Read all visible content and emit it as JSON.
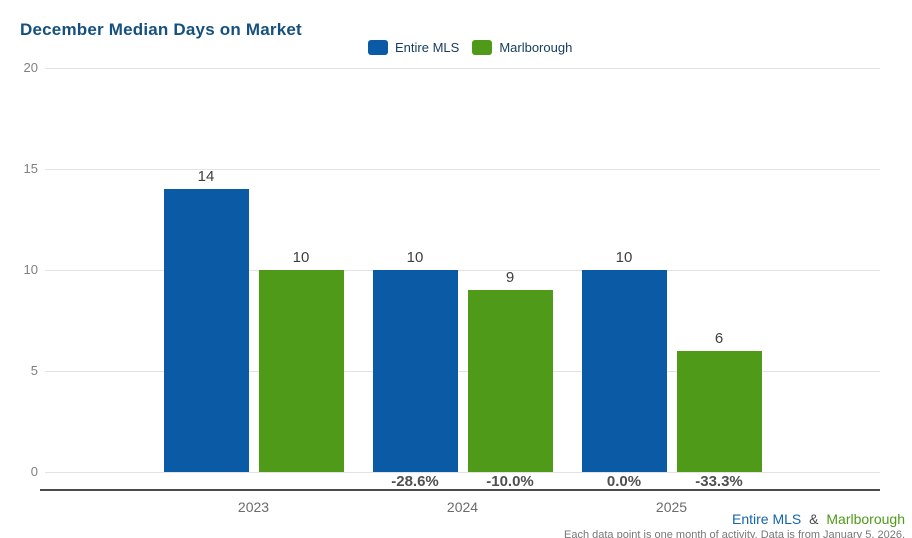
{
  "header": {
    "title": "December Median Days on Market",
    "title_color": "#15517e"
  },
  "legend": [
    {
      "label": "Entire MLS",
      "color": "#0b5aa5"
    },
    {
      "label": "Marlborough",
      "color": "#4f9a18"
    }
  ],
  "footer": {
    "series": [
      {
        "label": "Entire MLS",
        "color": "#1565ad"
      },
      {
        "label": "&",
        "color": "#4a4a4a"
      },
      {
        "label": "Marlborough",
        "color": "#4f9a18"
      }
    ],
    "note": "Each data point is one month of activity. Data is from January 5, 2026.",
    "note_color": "#777777"
  },
  "chart_data": {
    "type": "bar",
    "title": "December Median Days on Market",
    "categories": [
      "2023",
      "2024",
      "2025"
    ],
    "series": [
      {
        "name": "Entire MLS",
        "color": "#0b5aa5",
        "values": [
          14,
          10,
          10
        ],
        "pct_labels": [
          "",
          "-28.6%",
          "0.0%"
        ]
      },
      {
        "name": "Marlborough",
        "color": "#4f9a18",
        "values": [
          10,
          9,
          6
        ],
        "pct_labels": [
          "",
          "-10.0%",
          "-33.3%"
        ]
      }
    ],
    "ylim": [
      0,
      20
    ],
    "yticks": [
      0,
      5,
      10,
      15,
      20
    ],
    "grid": true,
    "legend_position": "top-center",
    "colors": {
      "grid": "#e3e3e3",
      "axis_line": "#4a4a4a",
      "tick_label": "#808080",
      "axis_label": "#6b6b6b",
      "value_label": "#3f3f3f",
      "pct_label": "#4f4f4f"
    }
  }
}
